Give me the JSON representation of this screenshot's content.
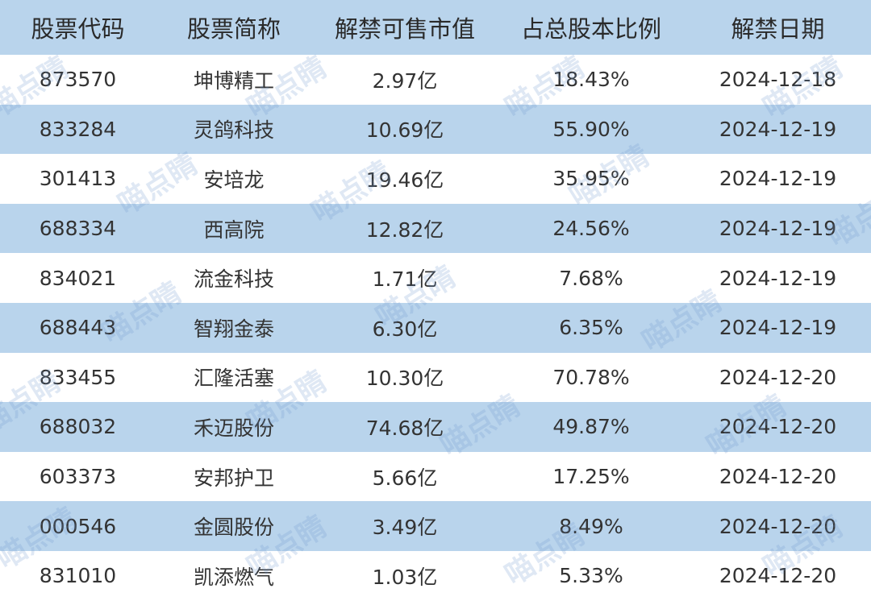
{
  "table": {
    "header": [
      "股票代码",
      "股票简称",
      "解禁可售市值",
      "占总股本比例",
      "解禁日期"
    ],
    "rows": [
      [
        "873570",
        "坤博精工",
        "2.97亿",
        "18.43%",
        "2024-12-18"
      ],
      [
        "833284",
        "灵鸽科技",
        "10.69亿",
        "55.90%",
        "2024-12-19"
      ],
      [
        "301413",
        "安培龙",
        "19.46亿",
        "35.95%",
        "2024-12-19"
      ],
      [
        "688334",
        "西高院",
        "12.82亿",
        "24.56%",
        "2024-12-19"
      ],
      [
        "834021",
        "流金科技",
        "1.71亿",
        "7.68%",
        "2024-12-19"
      ],
      [
        "688443",
        "智翔金泰",
        "6.30亿",
        "6.35%",
        "2024-12-19"
      ],
      [
        "833455",
        "汇隆活塞",
        "10.30亿",
        "70.78%",
        "2024-12-20"
      ],
      [
        "688032",
        "禾迈股份",
        "74.68亿",
        "49.87%",
        "2024-12-20"
      ],
      [
        "603373",
        "安邦护卫",
        "5.66亿",
        "17.25%",
        "2024-12-20"
      ],
      [
        "000546",
        "金圆股份",
        "3.49亿",
        "8.49%",
        "2024-12-20"
      ],
      [
        "831010",
        "凯添燃气",
        "1.03亿",
        "5.33%",
        "2024-12-20"
      ]
    ]
  },
  "watermark": "喵点睛"
}
